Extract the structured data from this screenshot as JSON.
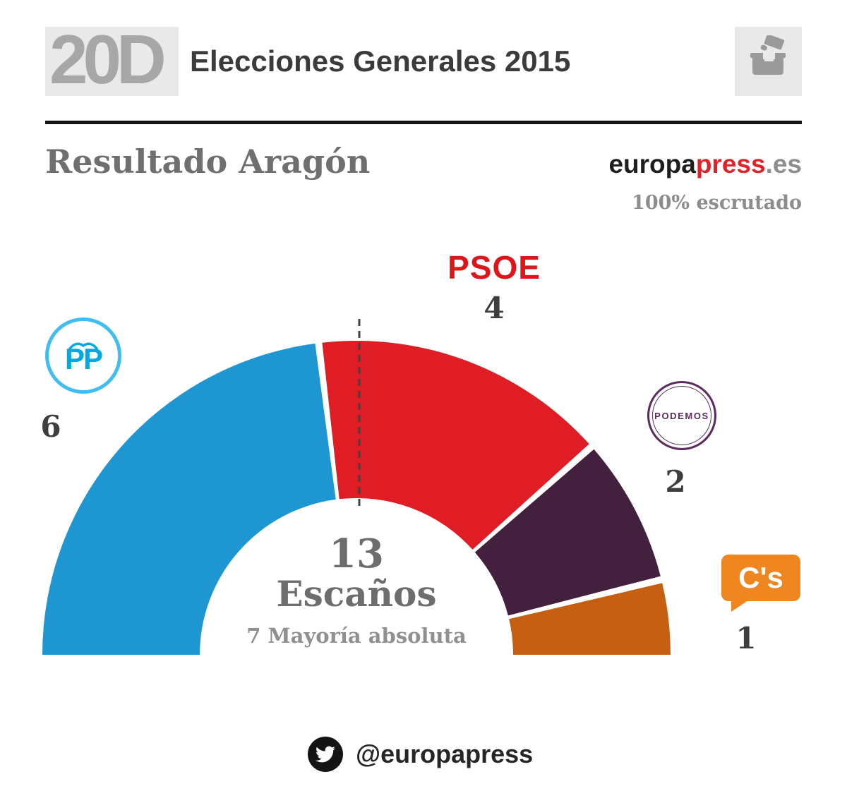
{
  "header": {
    "logo": "20D",
    "title": "Elecciones Generales 2015"
  },
  "result": {
    "title": "Resultado Aragón",
    "brand_black": "europa",
    "brand_red": "press",
    "brand_gray": ".es",
    "scrutiny": "100% escrutado"
  },
  "chart_data": {
    "type": "pie",
    "variant": "semicircle-donut-parliament",
    "title": "Resultado Aragón",
    "total_seats": 13,
    "majority_seats": 7,
    "center": {
      "value": "13",
      "label": "Escaños",
      "majority": "7 Mayoría absoluta"
    },
    "series": [
      {
        "name": "PP",
        "seats": 6,
        "color": "#1e96d2",
        "logo": "PP"
      },
      {
        "name": "PSOE",
        "seats": 4,
        "color": "#e01d24",
        "logo": "PSOE"
      },
      {
        "name": "PODEMOS",
        "seats": 2,
        "color": "#44203f",
        "logo": "PODEMOS"
      },
      {
        "name": "C's",
        "seats": 1,
        "color": "#c65f12",
        "logo": "C's"
      }
    ],
    "orientation": "180-degree half circle, seats fill left to right",
    "legend_position": "around-arc",
    "majority_marker": "vertical dashed line at top center"
  },
  "icons": {
    "ballot_box": "ballot-box-icon",
    "pp_bird": "seagull-icon",
    "twitter": "twitter-bird-icon"
  },
  "footer": {
    "handle": "@europapress"
  }
}
